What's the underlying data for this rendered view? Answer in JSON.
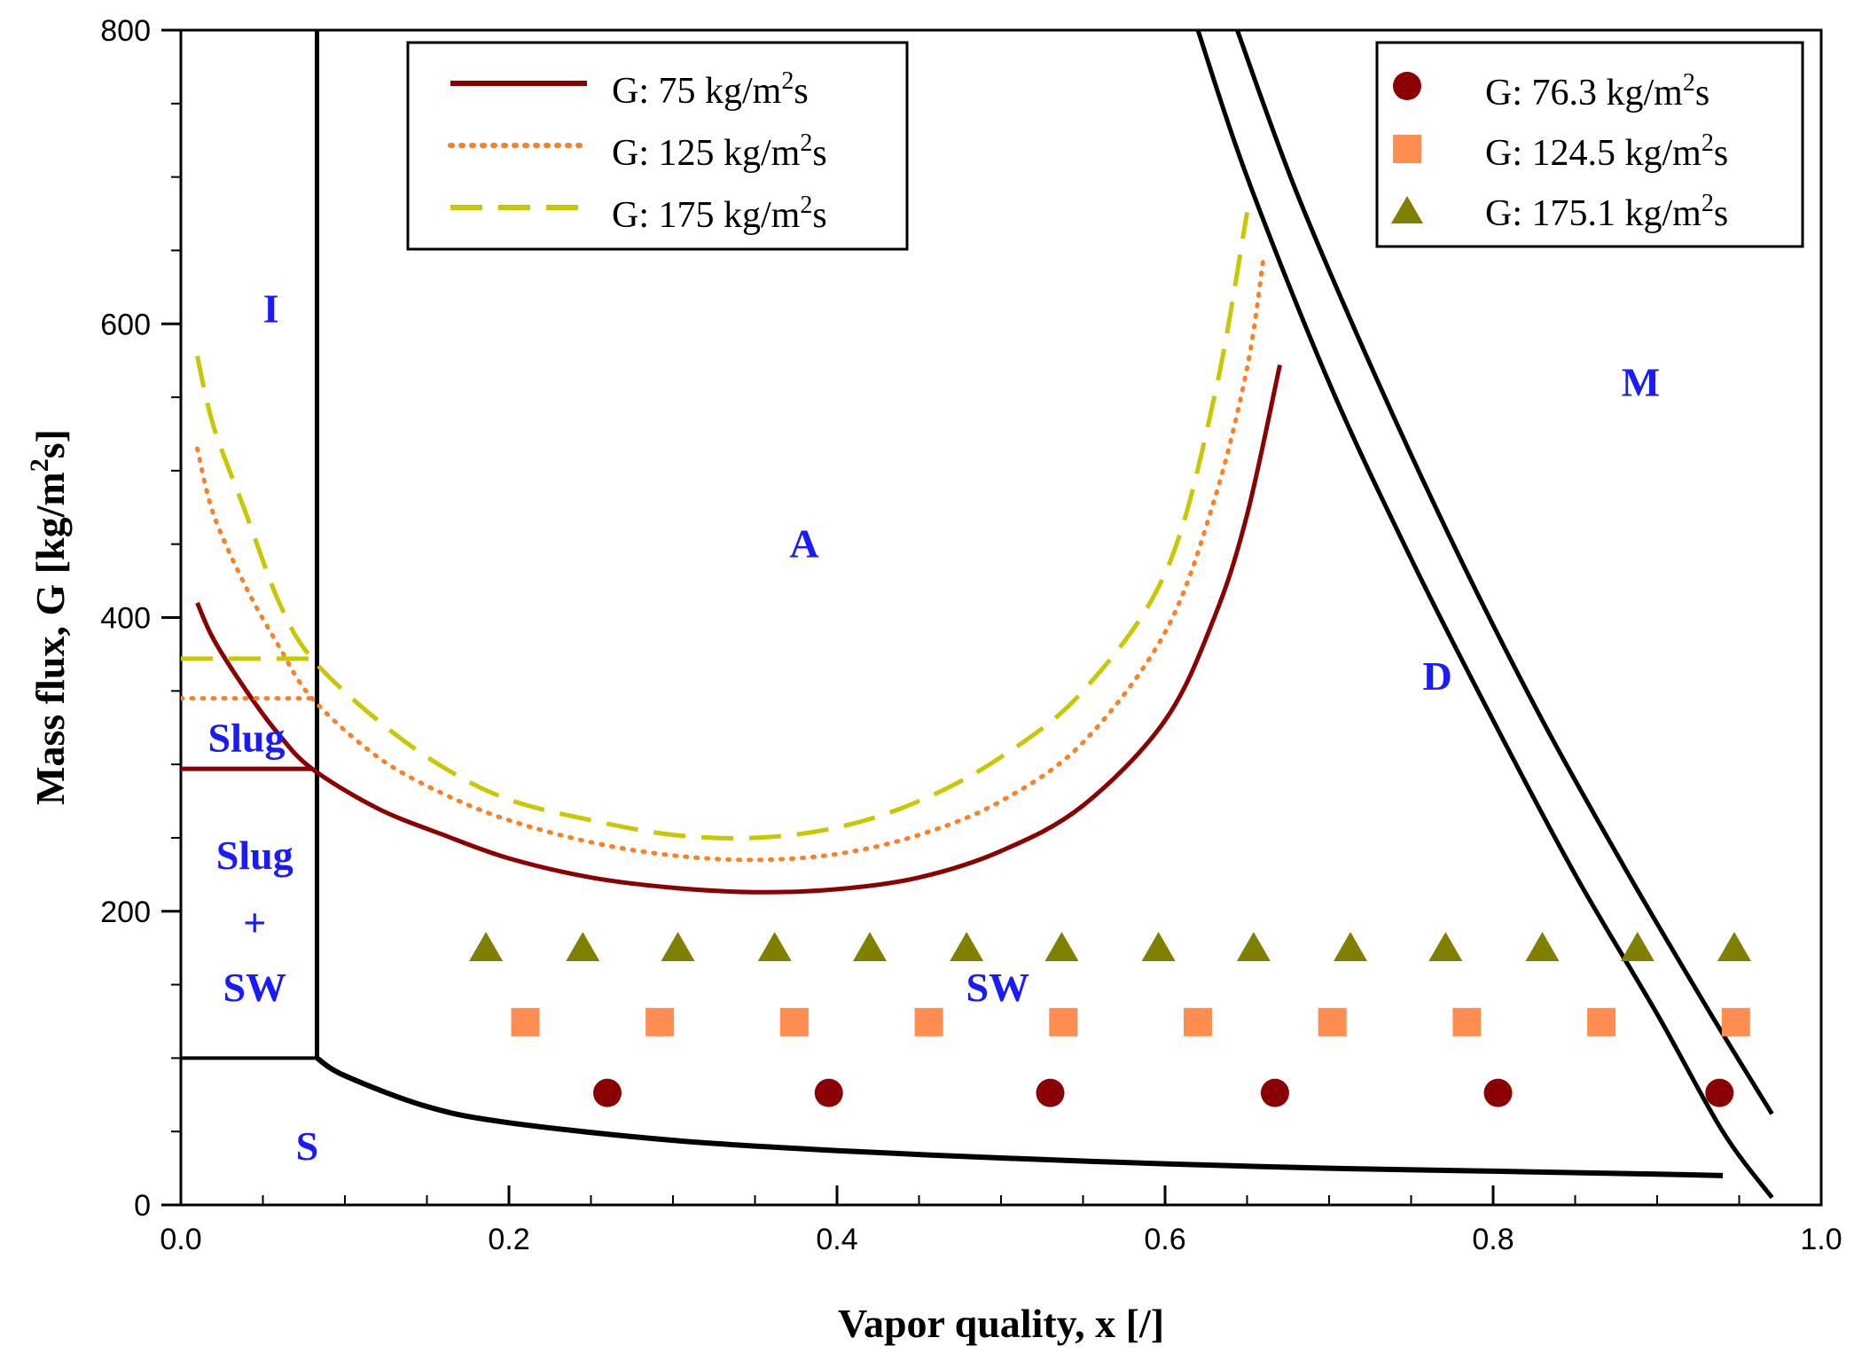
{
  "chart_data": {
    "type": "line",
    "title": "",
    "xlabel": "Vapor quality, x [/]",
    "ylabel_main": "Mass flux, G [kg/m",
    "ylabel_sup": "2",
    "ylabel_end": "s]",
    "xlim": [
      0,
      1
    ],
    "ylim": [
      0,
      800
    ],
    "xticks": [
      0,
      0.2,
      0.4,
      0.6,
      0.8,
      1.0
    ],
    "xtick_labels": [
      "0.0",
      "0.2",
      "0.4",
      "0.6",
      "0.8",
      "1.0"
    ],
    "yticks": [
      0,
      200,
      400,
      600,
      800
    ],
    "ytick_labels": [
      "0",
      "200",
      "400",
      "600",
      "800"
    ],
    "grid": false,
    "series": [
      {
        "name": "G:  75 kg/m2s",
        "legend_prefix": "G:   75 kg/m",
        "legend_sup": "2",
        "legend_suffix": "s",
        "style": "solid",
        "color": "#8b0000",
        "line": [
          [
            0.01,
            410
          ],
          [
            0.02,
            385
          ],
          [
            0.04,
            350
          ],
          [
            0.06,
            320
          ],
          [
            0.08,
            297
          ],
          [
            0.12,
            270
          ],
          [
            0.16,
            252
          ],
          [
            0.2,
            236
          ],
          [
            0.25,
            223
          ],
          [
            0.3,
            216
          ],
          [
            0.35,
            213
          ],
          [
            0.4,
            215
          ],
          [
            0.45,
            223
          ],
          [
            0.5,
            241
          ],
          [
            0.55,
            272
          ],
          [
            0.6,
            330
          ],
          [
            0.63,
            400
          ],
          [
            0.65,
            470
          ],
          [
            0.67,
            572
          ]
        ],
        "plateau": [
          [
            0.0,
            297
          ],
          [
            0.08,
            297
          ]
        ]
      },
      {
        "name": "G: 125 kg/m2s",
        "legend_prefix": "G: 125 kg/m",
        "legend_sup": "2",
        "legend_suffix": "s",
        "style": "dotted",
        "color": "#ff7f24",
        "line": [
          [
            0.01,
            515
          ],
          [
            0.02,
            470
          ],
          [
            0.04,
            420
          ],
          [
            0.06,
            380
          ],
          [
            0.08,
            345
          ],
          [
            0.12,
            305
          ],
          [
            0.16,
            280
          ],
          [
            0.2,
            262
          ],
          [
            0.25,
            247
          ],
          [
            0.3,
            238
          ],
          [
            0.35,
            235
          ],
          [
            0.4,
            239
          ],
          [
            0.45,
            252
          ],
          [
            0.5,
            275
          ],
          [
            0.55,
            315
          ],
          [
            0.6,
            390
          ],
          [
            0.63,
            480
          ],
          [
            0.65,
            570
          ],
          [
            0.66,
            645
          ]
        ],
        "plateau": [
          [
            0.0,
            345
          ],
          [
            0.08,
            345
          ]
        ]
      },
      {
        "name": "G: 175 kg/m2s",
        "legend_prefix": "G: 175 kg/m",
        "legend_sup": "2",
        "legend_suffix": "s",
        "style": "dashed",
        "color": "#c8c800",
        "line": [
          [
            0.01,
            578
          ],
          [
            0.02,
            530
          ],
          [
            0.04,
            470
          ],
          [
            0.06,
            410
          ],
          [
            0.08,
            372
          ],
          [
            0.12,
            330
          ],
          [
            0.16,
            298
          ],
          [
            0.2,
            276
          ],
          [
            0.25,
            262
          ],
          [
            0.3,
            252
          ],
          [
            0.35,
            250
          ],
          [
            0.4,
            257
          ],
          [
            0.45,
            275
          ],
          [
            0.5,
            305
          ],
          [
            0.55,
            350
          ],
          [
            0.6,
            430
          ],
          [
            0.63,
            550
          ],
          [
            0.65,
            676
          ]
        ],
        "plateau": [
          [
            0.0,
            372
          ],
          [
            0.08,
            372
          ]
        ]
      }
    ],
    "markers": [
      {
        "name": "G: 76.3 kg/m2s",
        "legend_prefix": "G:   76.3 kg/m",
        "legend_sup": "2",
        "legend_suffix": "s",
        "shape": "circle",
        "color": "#8b0000",
        "y": 76.3,
        "x": [
          0.26,
          0.395,
          0.53,
          0.667,
          0.803,
          0.938
        ]
      },
      {
        "name": "G: 124.5 kg/m2s",
        "legend_prefix": "G: 124.5 kg/m",
        "legend_sup": "2",
        "legend_suffix": "s",
        "shape": "square",
        "color": "#ff8c50",
        "y": 124.5,
        "x": [
          0.21,
          0.292,
          0.374,
          0.456,
          0.538,
          0.62,
          0.702,
          0.784,
          0.866,
          0.948
        ]
      },
      {
        "name": "G: 175.1 kg/m2s",
        "legend_prefix": "G: 175.1 kg/m",
        "legend_sup": "2",
        "legend_suffix": "s",
        "shape": "triangle",
        "color": "#808000",
        "y": 175.1,
        "x": [
          0.186,
          0.245,
          0.303,
          0.362,
          0.42,
          0.479,
          0.537,
          0.596,
          0.654,
          0.713,
          0.771,
          0.83,
          0.888,
          0.947
        ]
      }
    ],
    "boundaries": {
      "vertical_x": 0.083,
      "stratified_horizontal": [
        [
          0.0,
          100
        ],
        [
          0.083,
          100
        ]
      ],
      "stratified_curve": [
        [
          0.083,
          100
        ],
        [
          0.1,
          88
        ],
        [
          0.15,
          67
        ],
        [
          0.2,
          56
        ],
        [
          0.3,
          44
        ],
        [
          0.4,
          37
        ],
        [
          0.5,
          32
        ],
        [
          0.6,
          28
        ],
        [
          0.7,
          25
        ],
        [
          0.8,
          23
        ],
        [
          0.9,
          21
        ],
        [
          0.94,
          20
        ]
      ],
      "dryout_inner": [
        [
          0.62,
          800
        ],
        [
          0.65,
          700
        ],
        [
          0.7,
          560
        ],
        [
          0.75,
          440
        ],
        [
          0.8,
          330
        ],
        [
          0.85,
          225
        ],
        [
          0.9,
          130
        ],
        [
          0.94,
          50
        ],
        [
          0.97,
          5
        ]
      ],
      "dryout_outer": [
        [
          0.644,
          800
        ],
        [
          0.68,
          690
        ],
        [
          0.73,
          560
        ],
        [
          0.78,
          440
        ],
        [
          0.83,
          330
        ],
        [
          0.88,
          230
        ],
        [
          0.93,
          135
        ],
        [
          0.97,
          62
        ]
      ]
    },
    "regions": [
      {
        "label": "I",
        "x": 0.055,
        "y": 610
      },
      {
        "label": "A",
        "x": 0.38,
        "y": 450
      },
      {
        "label": "M",
        "x": 0.89,
        "y": 560
      },
      {
        "label": "D",
        "x": 0.766,
        "y": 360
      },
      {
        "label": "Slug",
        "x": 0.04,
        "y": 318
      },
      {
        "label": "Slug",
        "x": 0.045,
        "y": 238
      },
      {
        "label": "+",
        "x": 0.045,
        "y": 192
      },
      {
        "label": "SW",
        "x": 0.045,
        "y": 148
      },
      {
        "label": "SW",
        "x": 0.498,
        "y": 148
      },
      {
        "label": "S",
        "x": 0.077,
        "y": 40
      }
    ]
  }
}
